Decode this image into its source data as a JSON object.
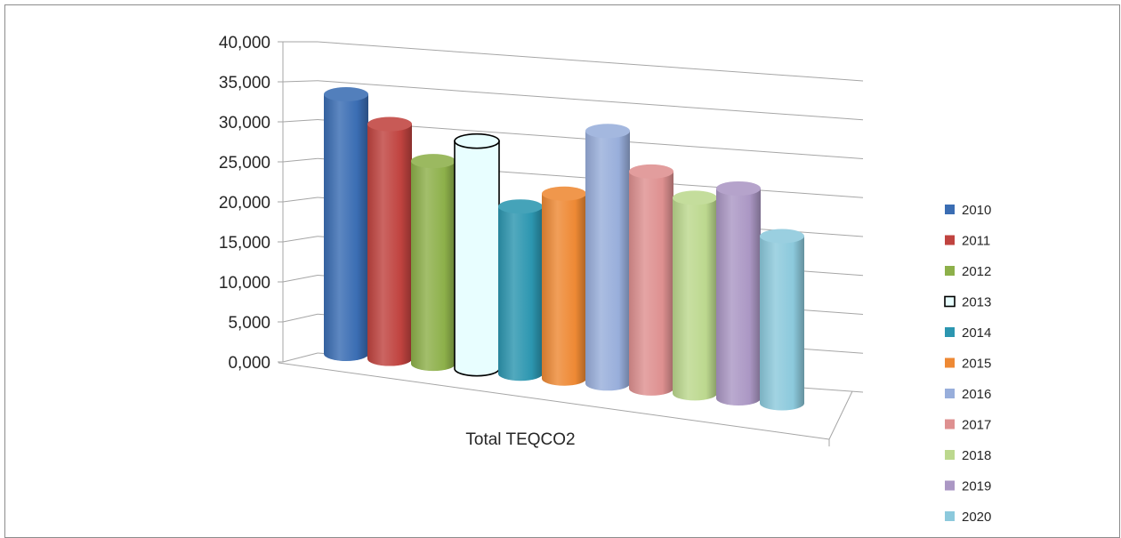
{
  "chart_data": {
    "type": "bar",
    "style": "3d-cylinder",
    "categories": [
      "Total TEQCO2"
    ],
    "ylim": [
      0,
      40000
    ],
    "ytick_labels": [
      "0,000",
      "5,000",
      "10,000",
      "15,000",
      "20,000",
      "25,000",
      "30,000",
      "35,000",
      "40,000"
    ],
    "grid": true,
    "legend_position": "right",
    "series": [
      {
        "name": "2010",
        "values": [
          36500
        ],
        "color": "#3A6DB3"
      },
      {
        "name": "2011",
        "values": [
          33000
        ],
        "color": "#C0433F"
      },
      {
        "name": "2012",
        "values": [
          28500
        ],
        "color": "#8DB04A"
      },
      {
        "name": "2013",
        "values": [
          32000
        ],
        "color": "#E8FEFF",
        "outlined": true
      },
      {
        "name": "2014",
        "values": [
          23500
        ],
        "color": "#2C96B0"
      },
      {
        "name": "2015",
        "values": [
          26000
        ],
        "color": "#EE8934"
      },
      {
        "name": "2016",
        "values": [
          35500
        ],
        "color": "#98AEDB"
      },
      {
        "name": "2017",
        "values": [
          30500
        ],
        "color": "#DE9090"
      },
      {
        "name": "2018",
        "values": [
          27500
        ],
        "color": "#BCD88E"
      },
      {
        "name": "2019",
        "values": [
          29500
        ],
        "color": "#AB97C4"
      },
      {
        "name": "2020",
        "values": [
          23500
        ],
        "color": "#8CC9DC"
      }
    ]
  }
}
